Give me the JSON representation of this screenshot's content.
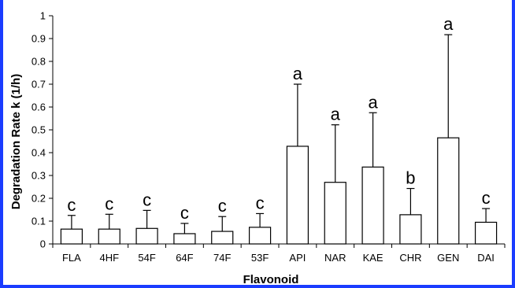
{
  "frame_color": "#1a3cff",
  "chart_data": {
    "type": "bar",
    "xlabel": "Flavonoid",
    "ylabel": "Degradation Rate k (1/h)",
    "ylim": [
      0,
      1
    ],
    "yticks": [
      "0",
      "0.1",
      "0.2",
      "0.3",
      "0.4",
      "0.5",
      "0.6",
      "0.7",
      "0.8",
      "0.9",
      "1"
    ],
    "grid": false,
    "categories": [
      "FLA",
      "4HF",
      "54F",
      "64F",
      "74F",
      "53F",
      "API",
      "NAR",
      "KAE",
      "CHR",
      "GEN",
      "DAI"
    ],
    "values": [
      0.065,
      0.065,
      0.068,
      0.045,
      0.055,
      0.073,
      0.428,
      0.27,
      0.337,
      0.128,
      0.465,
      0.095
    ],
    "error_upper": [
      0.125,
      0.13,
      0.147,
      0.09,
      0.12,
      0.133,
      0.7,
      0.522,
      0.575,
      0.243,
      0.917,
      0.155
    ],
    "significance": [
      "c",
      "c",
      "c",
      "c",
      "c",
      "c",
      "a",
      "a",
      "a",
      "b",
      "a",
      "c"
    ],
    "bar_color": "#ffffff",
    "bar_edge_color": "#000000"
  }
}
